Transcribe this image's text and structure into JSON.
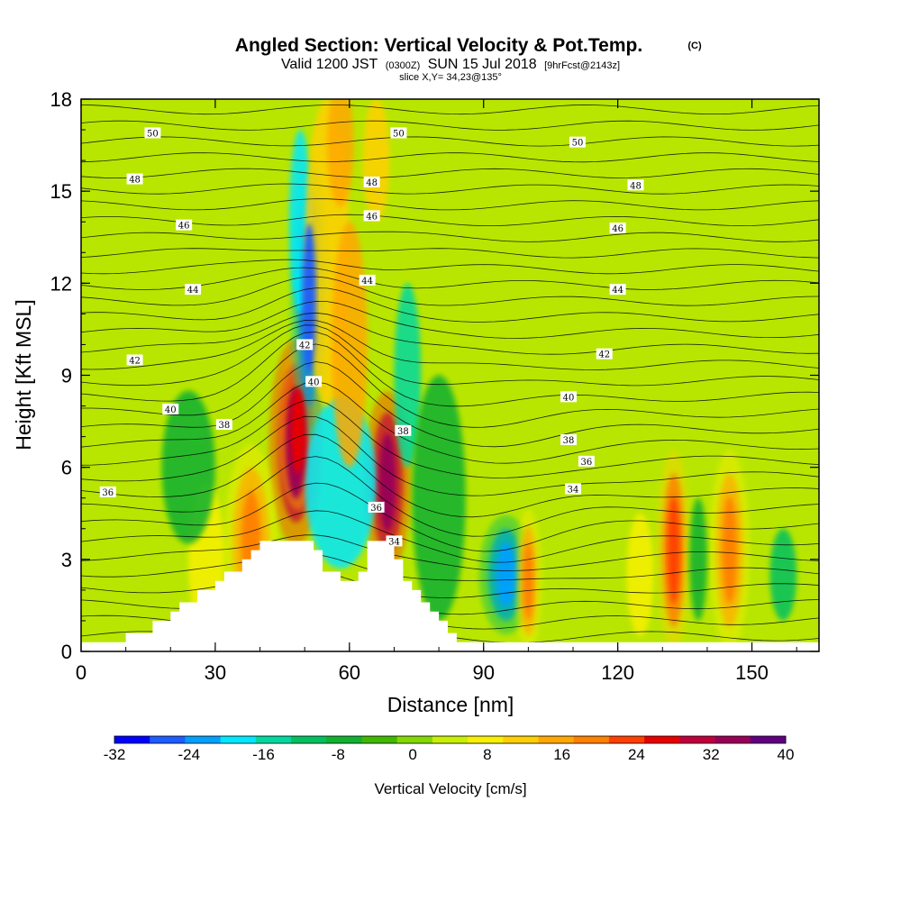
{
  "chart_data": {
    "type": "heatmap",
    "title": "Angled Section: Vertical Velocity & Pot.Temp.",
    "title_units": "(C)",
    "subtitle_parts": [
      "Valid 1200 JST",
      "(0300Z)",
      "SUN 15 Jul 2018",
      "[9hrFcst@2143z]"
    ],
    "slice_label": "slice X,Y= 34,23@135°",
    "xlabel": "Distance [nm]",
    "ylabel": "Height [Kft MSL]",
    "xlim": [
      0,
      165
    ],
    "ylim": [
      0,
      18
    ],
    "xticks": [
      "0",
      "30",
      "60",
      "90",
      "120",
      "150"
    ],
    "yticks": [
      "0",
      "3",
      "6",
      "9",
      "12",
      "15",
      "18"
    ],
    "colorbar": {
      "label": "Vertical Velocity [cm/s]",
      "tick_labels": [
        "-32",
        "-24",
        "-16",
        "-8",
        "0",
        "8",
        "16",
        "24",
        "32",
        "40"
      ],
      "levels": [
        -32,
        -28,
        -24,
        -20,
        -16,
        -12,
        -8,
        -4,
        0,
        4,
        8,
        12,
        16,
        20,
        24,
        28,
        32,
        36,
        40
      ],
      "colors": [
        "#0000ff",
        "#1e5cff",
        "#00a0ff",
        "#00e8ff",
        "#00d8a0",
        "#00c060",
        "#10b030",
        "#40b800",
        "#84d800",
        "#c8f000",
        "#f8f000",
        "#ffd000",
        "#ffa800",
        "#ff8000",
        "#ff4000",
        "#e80000",
        "#c0003c",
        "#980058",
        "#600080"
      ]
    },
    "contour_labels": [
      {
        "text": "50",
        "x": 16,
        "y": 16.9
      },
      {
        "text": "50",
        "x": 71,
        "y": 16.9
      },
      {
        "text": "50",
        "x": 111,
        "y": 16.6
      },
      {
        "text": "48",
        "x": 12,
        "y": 15.4
      },
      {
        "text": "48",
        "x": 65,
        "y": 15.3
      },
      {
        "text": "48",
        "x": 124,
        "y": 15.2
      },
      {
        "text": "46",
        "x": 23,
        "y": 13.9
      },
      {
        "text": "46",
        "x": 65,
        "y": 14.2
      },
      {
        "text": "46",
        "x": 120,
        "y": 13.8
      },
      {
        "text": "44",
        "x": 25,
        "y": 11.8
      },
      {
        "text": "44",
        "x": 64,
        "y": 12.1
      },
      {
        "text": "44",
        "x": 120,
        "y": 11.8
      },
      {
        "text": "42",
        "x": 12,
        "y": 9.5
      },
      {
        "text": "42",
        "x": 50,
        "y": 10
      },
      {
        "text": "42",
        "x": 117,
        "y": 9.7
      },
      {
        "text": "40",
        "x": 20,
        "y": 7.9
      },
      {
        "text": "40",
        "x": 52,
        "y": 8.8
      },
      {
        "text": "40",
        "x": 109,
        "y": 8.3
      },
      {
        "text": "38",
        "x": 32,
        "y": 7.4
      },
      {
        "text": "38",
        "x": 72,
        "y": 7.2
      },
      {
        "text": "38",
        "x": 109,
        "y": 6.9
      },
      {
        "text": "36",
        "x": 6,
        "y": 5.2
      },
      {
        "text": "36",
        "x": 66,
        "y": 4.7
      },
      {
        "text": "36",
        "x": 113,
        "y": 6.2
      },
      {
        "text": "34",
        "x": 70,
        "y": 3.6
      },
      {
        "text": "34",
        "x": 110,
        "y": 5.3
      }
    ],
    "terrain_profile": [
      [
        10,
        0
      ],
      [
        10,
        0.6
      ],
      [
        16,
        0.6
      ],
      [
        16,
        1
      ],
      [
        20,
        1
      ],
      [
        20,
        1.3
      ],
      [
        22,
        1.3
      ],
      [
        22,
        1.6
      ],
      [
        26,
        1.6
      ],
      [
        26,
        2
      ],
      [
        30,
        2
      ],
      [
        30,
        2.3
      ],
      [
        32,
        2.3
      ],
      [
        32,
        2.6
      ],
      [
        36,
        2.6
      ],
      [
        36,
        3
      ],
      [
        38,
        3
      ],
      [
        38,
        3.3
      ],
      [
        40,
        3.3
      ],
      [
        40,
        3.6
      ],
      [
        52,
        3.6
      ],
      [
        52,
        3.3
      ],
      [
        54,
        3.3
      ],
      [
        54,
        2.6
      ],
      [
        58,
        2.6
      ],
      [
        58,
        2.3
      ],
      [
        62,
        2.3
      ],
      [
        62,
        2.6
      ],
      [
        64,
        2.6
      ],
      [
        64,
        3.6
      ],
      [
        70,
        3.6
      ],
      [
        70,
        3
      ],
      [
        72,
        3
      ],
      [
        72,
        2.3
      ],
      [
        74,
        2.3
      ],
      [
        74,
        2
      ],
      [
        76,
        2
      ],
      [
        76,
        1.6
      ],
      [
        78,
        1.6
      ],
      [
        78,
        1.3
      ],
      [
        80,
        1.3
      ],
      [
        80,
        1
      ],
      [
        82,
        1
      ],
      [
        82,
        0.6
      ],
      [
        84,
        0.6
      ],
      [
        84,
        0.3
      ],
      [
        90,
        0.3
      ],
      [
        90,
        0
      ]
    ],
    "velocity_cells": [
      {
        "x": 48,
        "y": 6.8,
        "rx": 4,
        "ry": 2.6,
        "v": 38
      },
      {
        "x": 48.5,
        "y": 7.2,
        "rx": 3,
        "ry": 2,
        "v": 30
      },
      {
        "x": 68.5,
        "y": 5.5,
        "rx": 3.5,
        "ry": 2.3,
        "v": 36
      },
      {
        "x": 58,
        "y": 5.5,
        "rx": 8,
        "ry": 2.8,
        "v": -18
      },
      {
        "x": 51,
        "y": 11.5,
        "rx": 2.8,
        "ry": 3.5,
        "v": -26
      },
      {
        "x": 49,
        "y": 14,
        "rx": 2.5,
        "ry": 3,
        "v": -18
      },
      {
        "x": 73,
        "y": 9,
        "rx": 3,
        "ry": 3,
        "v": -16
      },
      {
        "x": 55,
        "y": 13,
        "rx": 5,
        "ry": 5,
        "v": 14
      },
      {
        "x": 60,
        "y": 10,
        "rx": 4,
        "ry": 4,
        "v": 16
      },
      {
        "x": 58,
        "y": 16.5,
        "rx": 3,
        "ry": 2,
        "v": 18
      },
      {
        "x": 66,
        "y": 16,
        "rx": 3,
        "ry": 2,
        "v": 14
      },
      {
        "x": 38,
        "y": 3.5,
        "rx": 4,
        "ry": 2.5,
        "v": 20
      },
      {
        "x": 95,
        "y": 2.5,
        "rx": 4,
        "ry": 1.5,
        "v": -22
      },
      {
        "x": 100,
        "y": 2.3,
        "rx": 2,
        "ry": 1.8,
        "v": 22
      },
      {
        "x": 132.5,
        "y": 3.3,
        "rx": 2.5,
        "ry": 2.5,
        "v": 24
      },
      {
        "x": 145,
        "y": 3.3,
        "rx": 3,
        "ry": 2.5,
        "v": 22
      },
      {
        "x": 138,
        "y": 3,
        "rx": 2,
        "ry": 2,
        "v": -8
      },
      {
        "x": 157,
        "y": 2.5,
        "rx": 3,
        "ry": 1.5,
        "v": -12
      },
      {
        "x": 125,
        "y": 2.5,
        "rx": 3,
        "ry": 2,
        "v": 10
      },
      {
        "x": 28,
        "y": 3,
        "rx": 4,
        "ry": 2.5,
        "v": 10
      },
      {
        "x": 80,
        "y": 5,
        "rx": 6,
        "ry": 4,
        "v": -6
      },
      {
        "x": 24,
        "y": 6,
        "rx": 6,
        "ry": 2.5,
        "v": -6
      }
    ]
  }
}
